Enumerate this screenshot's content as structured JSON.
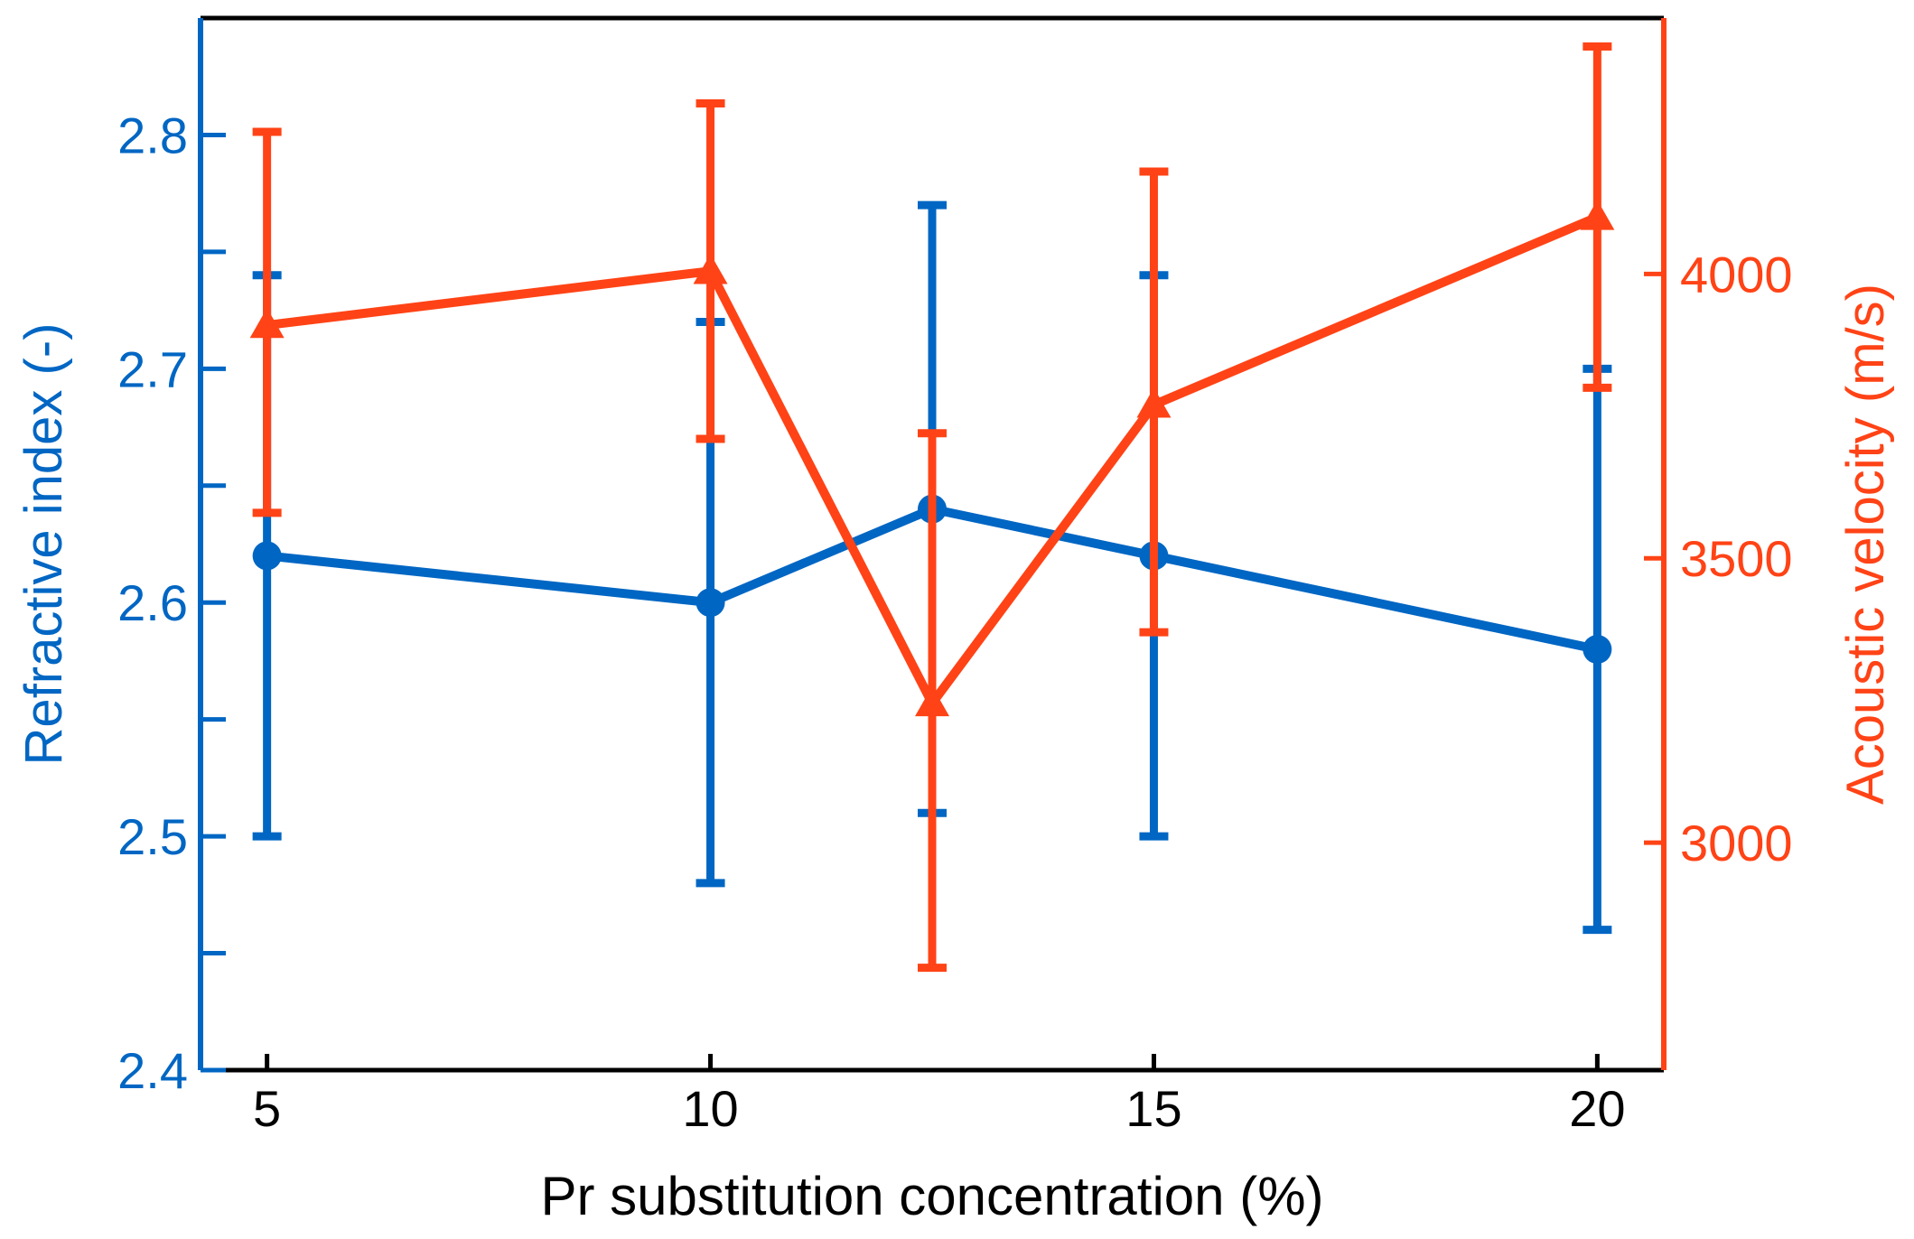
{
  "chart_data": {
    "type": "line",
    "title": "",
    "xlabel": "Pr substitution concentration (%)",
    "ylabel_left": "Refractive index (-)",
    "ylabel_right": "Acoustic velocity (m/s)",
    "xlim": [
      4.25,
      20.75
    ],
    "ylim_left": [
      2.4,
      2.85
    ],
    "ylim_right": [
      2600,
      4450
    ],
    "x_ticks": [
      5,
      10,
      15,
      20
    ],
    "x_tick_labels": [
      "5",
      "10",
      "15",
      "20"
    ],
    "y_left_ticks": [
      2.4,
      2.5,
      2.6,
      2.7,
      2.8
    ],
    "y_left_tick_labels": [
      "2.4",
      "2.5",
      "2.6",
      "2.7",
      "2.8"
    ],
    "y_left_minor_ticks": [
      2.45,
      2.55,
      2.65,
      2.75
    ],
    "y_right_ticks": [
      3000,
      3500,
      4000
    ],
    "y_right_tick_labels": [
      "3000",
      "3500",
      "4000"
    ],
    "grid": false,
    "series": [
      {
        "name": "Refractive index",
        "axis": "left",
        "marker": "circle",
        "color": "#0066c3",
        "x": [
          5,
          10,
          12.5,
          15,
          20
        ],
        "y": [
          2.62,
          2.6,
          2.64,
          2.62,
          2.58
        ],
        "err_low": [
          2.5,
          2.48,
          2.51,
          2.5,
          2.46
        ],
        "err_high": [
          2.74,
          2.72,
          2.77,
          2.74,
          2.7
        ]
      },
      {
        "name": "Acoustic velocity",
        "axis": "right",
        "marker": "triangle",
        "color": "#ff4316",
        "x": [
          5,
          10,
          12.5,
          15,
          20
        ],
        "y": [
          3910,
          4005,
          3245,
          3770,
          4100
        ],
        "err_low": [
          3580,
          3710,
          2780,
          3370,
          3800
        ],
        "err_high": [
          4250,
          4300,
          3720,
          4180,
          4400
        ]
      }
    ]
  }
}
